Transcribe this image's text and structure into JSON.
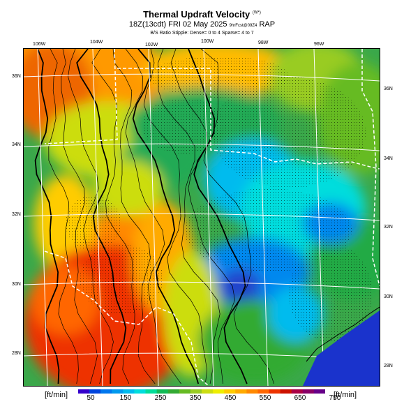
{
  "header": {
    "title": "Thermal Updraft Velocity",
    "title_sup": "(W*)",
    "valid": "18Z(13cdt) FRI 02 May 2025",
    "issued": "9hrFcst@09Z4",
    "model": "RAP",
    "stipple_note": "B/S Ratio Stipple: Dense= 0 to 4 Sparse= 4 to 7"
  },
  "lon_labels": [
    "106W",
    "104W",
    "102W",
    "100W",
    "98W",
    "96W"
  ],
  "lat_labels_left": [
    "36N",
    "34N",
    "32N",
    "30N",
    "28N"
  ],
  "lat_labels_right": [
    "36N",
    "34N",
    "32N",
    "30N",
    "28N"
  ],
  "colorbar": {
    "unit_left": "[ft/min]",
    "unit_right": "[ft/min]",
    "tick_labels": [
      "50",
      "150",
      "250",
      "350",
      "450",
      "550",
      "650",
      "750"
    ],
    "colors": [
      "#3300cc",
      "#0044dd",
      "#0077ee",
      "#0099ee",
      "#00bbee",
      "#00dddd",
      "#00dd99",
      "#11bb55",
      "#33aa33",
      "#66bb22",
      "#99cc22",
      "#ccdd11",
      "#eeee00",
      "#ffcc00",
      "#ffaa00",
      "#ff8800",
      "#ff6600",
      "#ee3300",
      "#cc1100",
      "#aa0044",
      "#880066",
      "#660088"
    ]
  },
  "colors": {
    "state_lines": "#ffffff",
    "contours": "#000000",
    "ocean": "#1a33cc"
  }
}
